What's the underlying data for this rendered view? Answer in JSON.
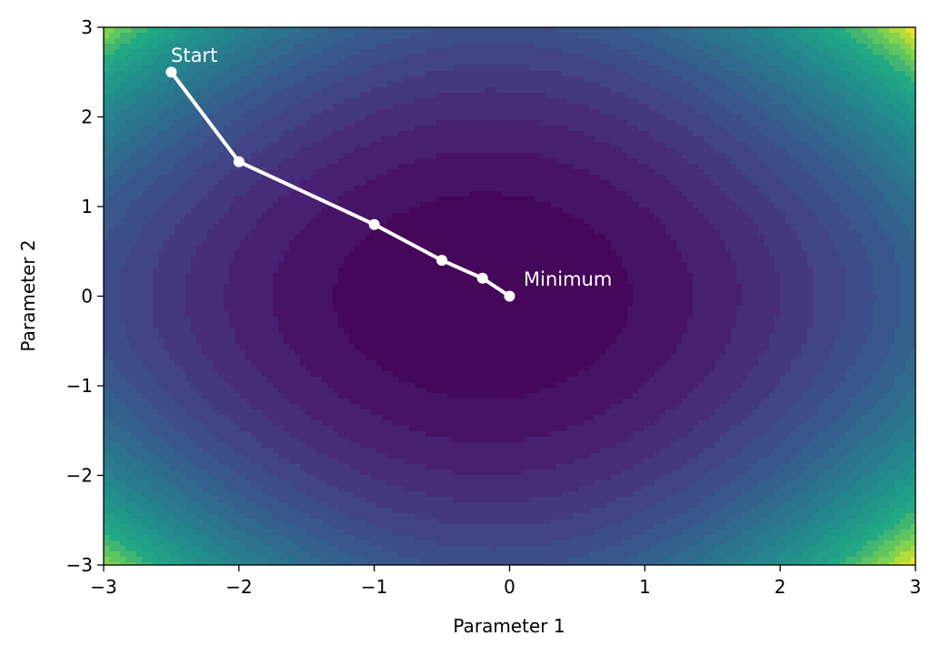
{
  "chart_data": {
    "type": "contour",
    "title": "",
    "xlabel": "Parameter 1",
    "ylabel": "Parameter 2",
    "xlim": [
      -3,
      3
    ],
    "ylim": [
      -3,
      3
    ],
    "xticks": [
      -3,
      -2,
      -1,
      0,
      1,
      2,
      3
    ],
    "yticks": [
      -3,
      -2,
      -1,
      0,
      1,
      2,
      3
    ],
    "xtick_labels": [
      "−3",
      "−2",
      "−1",
      "0",
      "1",
      "2",
      "3"
    ],
    "ytick_labels": [
      "−3",
      "−2",
      "−1",
      "0",
      "1",
      "2",
      "3"
    ],
    "colormap": "viridis",
    "grid": false,
    "surface": {
      "minimum_region_center": [
        -0.2,
        0.0
      ]
    },
    "series": [
      {
        "x": [
          -2.5,
          -2.0,
          -1.0,
          -0.5,
          -0.2,
          0.0
        ],
        "y": [
          2.5,
          1.5,
          0.8,
          0.4,
          0.2,
          0.0
        ],
        "color": "#ffffff",
        "marker": "circle"
      }
    ],
    "annotations": [
      {
        "text": "Start",
        "x": -2.5,
        "y": 2.5
      },
      {
        "text": "Minimum",
        "x": 0.0,
        "y": 0.0
      }
    ]
  }
}
